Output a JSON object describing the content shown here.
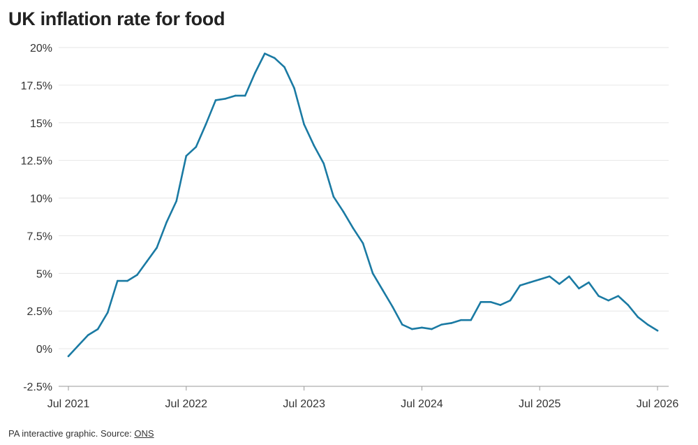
{
  "chart_data": {
    "type": "line",
    "title": "UK inflation rate for food",
    "xlabel": "",
    "ylabel": "",
    "x_tick_labels": [
      "Jul 2021",
      "Jul 2022",
      "Jul 2023",
      "Jul 2024",
      "Jul 2025",
      "Jul 2026"
    ],
    "y_tick_labels": [
      "20%",
      "17.5%",
      "15%",
      "12.5%",
      "10%",
      "7.5%",
      "5%",
      "2.5%",
      "0%",
      "-2.5%"
    ],
    "y_ticks": [
      20,
      17.5,
      15,
      12.5,
      10,
      7.5,
      5,
      2.5,
      0,
      -2.5
    ],
    "ylim": [
      -2.5,
      20
    ],
    "xlim": [
      "2021-07",
      "2026-07"
    ],
    "grid": true,
    "line_color": "#1a7aa3",
    "series": [
      {
        "x": [
          "2021-07",
          "2021-08",
          "2021-09",
          "2021-10",
          "2021-11",
          "2021-12",
          "2022-01",
          "2022-02",
          "2022-03",
          "2022-04",
          "2022-05",
          "2022-06",
          "2022-07",
          "2022-08",
          "2022-09",
          "2022-10",
          "2022-11",
          "2022-12",
          "2023-01",
          "2023-02",
          "2023-03",
          "2023-04",
          "2023-05",
          "2023-06",
          "2023-07",
          "2023-08",
          "2023-09",
          "2023-10",
          "2023-11",
          "2023-12",
          "2024-01",
          "2024-02",
          "2024-03",
          "2024-04",
          "2024-05",
          "2024-06",
          "2024-07",
          "2024-08",
          "2024-09",
          "2024-10",
          "2024-11",
          "2024-12",
          "2025-01",
          "2025-02",
          "2025-03",
          "2025-04",
          "2025-05",
          "2025-06",
          "2025-07",
          "2025-08",
          "2025-09",
          "2025-10",
          "2025-11",
          "2025-12",
          "2026-01",
          "2026-02",
          "2026-03",
          "2026-04",
          "2026-05",
          "2026-06",
          "2026-07"
        ],
        "values": [
          -0.5,
          0.2,
          0.9,
          1.3,
          2.4,
          4.5,
          4.5,
          4.9,
          5.8,
          6.7,
          8.4,
          9.8,
          12.8,
          13.4,
          14.9,
          16.5,
          16.6,
          16.8,
          16.8,
          18.3,
          19.6,
          19.3,
          18.7,
          17.3,
          14.9,
          13.5,
          12.3,
          10.1,
          9.1,
          8.0,
          7.0,
          5.0,
          3.9,
          2.8,
          1.6,
          1.3,
          1.4,
          1.3,
          1.6,
          1.7,
          1.9,
          1.9,
          3.1,
          3.1,
          2.9,
          3.2,
          4.2,
          4.4,
          4.6,
          4.8,
          4.3,
          4.8,
          4.0,
          4.4,
          3.5,
          3.2,
          3.5,
          2.9,
          2.1,
          1.6,
          1.2
        ]
      }
    ]
  },
  "footer": {
    "prefix": "PA interactive graphic. Source: ",
    "source_link": "ONS"
  }
}
